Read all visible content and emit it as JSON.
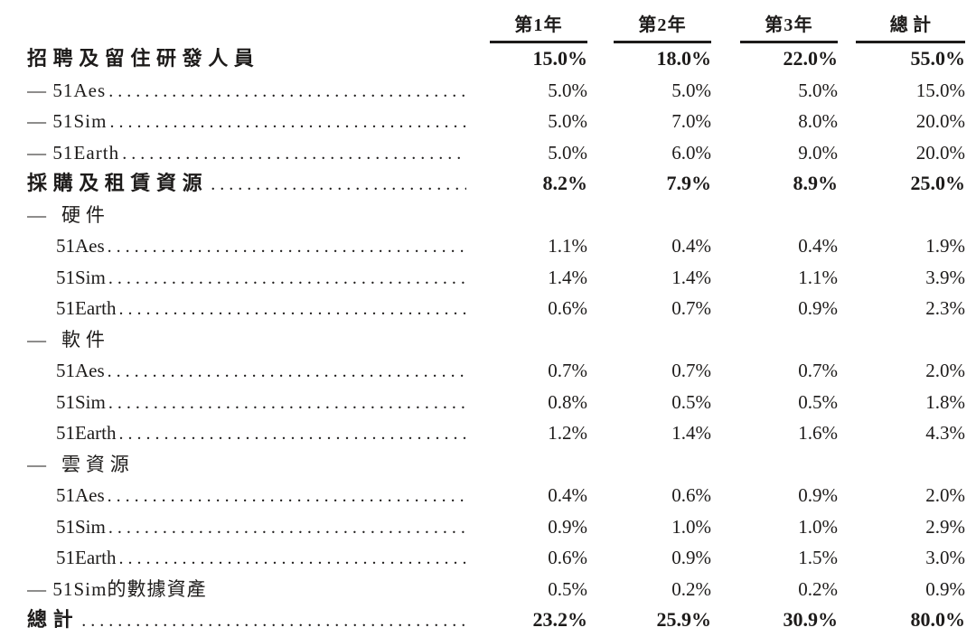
{
  "table": {
    "columns": [
      "第1年",
      "第2年",
      "第3年",
      "總計"
    ],
    "rows": [
      {
        "label": "招聘及留住研發人員",
        "type": "section",
        "dots": false,
        "values": [
          "15.0%",
          "18.0%",
          "22.0%",
          "55.0%"
        ]
      },
      {
        "label": "— 51Aes",
        "type": "dash-mixed",
        "dots": true,
        "values": [
          "5.0%",
          "5.0%",
          "5.0%",
          "15.0%"
        ]
      },
      {
        "label": "— 51Sim",
        "type": "dash-mixed",
        "dots": true,
        "values": [
          "5.0%",
          "7.0%",
          "8.0%",
          "20.0%"
        ]
      },
      {
        "label": "— 51Earth",
        "type": "dash-mixed",
        "dots": true,
        "values": [
          "5.0%",
          "6.0%",
          "9.0%",
          "20.0%"
        ]
      },
      {
        "label": "採購及租賃資源",
        "type": "section",
        "dots": true,
        "values": [
          "8.2%",
          "7.9%",
          "8.9%",
          "25.0%"
        ]
      },
      {
        "label": "— 硬件",
        "type": "dash-cjk",
        "dots": false,
        "values": []
      },
      {
        "label": "51Aes",
        "type": "sub",
        "dots": true,
        "values": [
          "1.1%",
          "0.4%",
          "0.4%",
          "1.9%"
        ]
      },
      {
        "label": "51Sim",
        "type": "sub",
        "dots": true,
        "values": [
          "1.4%",
          "1.4%",
          "1.1%",
          "3.9%"
        ]
      },
      {
        "label": "51Earth",
        "type": "sub",
        "dots": true,
        "values": [
          "0.6%",
          "0.7%",
          "0.9%",
          "2.3%"
        ]
      },
      {
        "label": "— 軟件",
        "type": "dash-cjk",
        "dots": false,
        "values": []
      },
      {
        "label": "51Aes",
        "type": "sub",
        "dots": true,
        "values": [
          "0.7%",
          "0.7%",
          "0.7%",
          "2.0%"
        ]
      },
      {
        "label": "51Sim",
        "type": "sub",
        "dots": true,
        "values": [
          "0.8%",
          "0.5%",
          "0.5%",
          "1.8%"
        ]
      },
      {
        "label": "51Earth",
        "type": "sub",
        "dots": true,
        "values": [
          "1.2%",
          "1.4%",
          "1.6%",
          "4.3%"
        ]
      },
      {
        "label": "— 雲資源",
        "type": "dash-cjk",
        "dots": false,
        "values": []
      },
      {
        "label": "51Aes",
        "type": "sub",
        "dots": true,
        "values": [
          "0.4%",
          "0.6%",
          "0.9%",
          "2.0%"
        ]
      },
      {
        "label": "51Sim",
        "type": "sub",
        "dots": true,
        "values": [
          "0.9%",
          "1.0%",
          "1.0%",
          "2.9%"
        ]
      },
      {
        "label": "51Earth",
        "type": "sub",
        "dots": true,
        "values": [
          "0.6%",
          "0.9%",
          "1.5%",
          "3.0%"
        ]
      },
      {
        "label": "— 51Sim的數據資產",
        "type": "dash-mixed",
        "dots": false,
        "values": [
          "0.5%",
          "0.2%",
          "0.2%",
          "0.9%"
        ]
      },
      {
        "label": "總計",
        "type": "section",
        "dots": true,
        "values": [
          "23.2%",
          "25.9%",
          "30.9%",
          "80.0%"
        ]
      }
    ]
  },
  "colors": {
    "text": "#1d1b1a",
    "background": "#ffffff",
    "header_rule": "#1d1b1a"
  }
}
